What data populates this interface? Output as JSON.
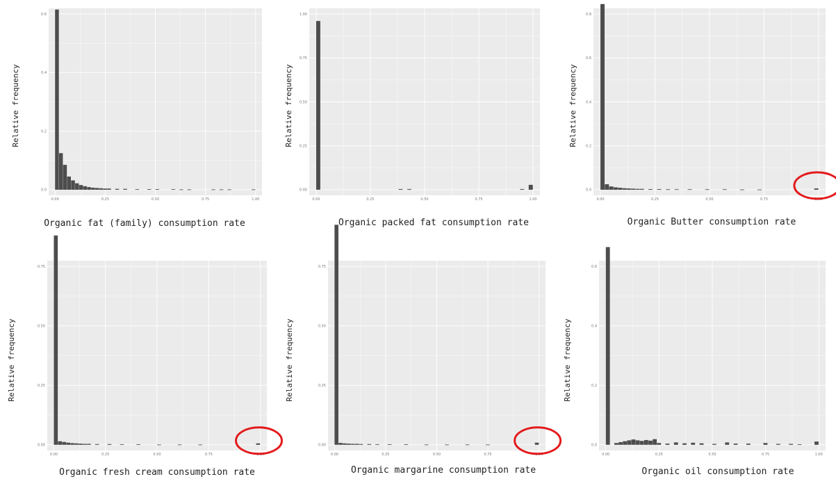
{
  "figure": {
    "description_free": true,
    "colors": {
      "panel_bg": "#ebebeb",
      "grid": "#ffffff",
      "bar": "#4d4d4d",
      "highlight_circle": "#e31a1c"
    }
  },
  "chart_data": [
    {
      "type": "bar",
      "xlabel": "Organic fat (family) consumption rate",
      "ylabel": "Relative frequency",
      "xlim": [
        0,
        1
      ],
      "ylim": [
        0,
        0.6
      ],
      "xticks": [
        "0.00",
        "0.25",
        "0.50",
        "0.75",
        "1.00"
      ],
      "xtick_values": [
        0,
        0.25,
        0.5,
        0.75,
        1
      ],
      "yticks": [
        "0.0",
        "0.2",
        "0.4",
        "0.6"
      ],
      "ytick_values": [
        0,
        0.2,
        0.4,
        0.6
      ],
      "bin_width": 0.02,
      "x": [
        0.0,
        0.02,
        0.04,
        0.06,
        0.08,
        0.1,
        0.12,
        0.14,
        0.16,
        0.18,
        0.2,
        0.22,
        0.24,
        0.26,
        0.3,
        0.34,
        0.4,
        0.46,
        0.5,
        0.58,
        0.62,
        0.66,
        0.78,
        0.82,
        0.86,
        0.98
      ],
      "values": [
        0.615,
        0.125,
        0.085,
        0.045,
        0.032,
        0.022,
        0.016,
        0.012,
        0.009,
        0.007,
        0.006,
        0.005,
        0.004,
        0.004,
        0.003,
        0.003,
        0.002,
        0.002,
        0.002,
        0.002,
        0.001,
        0.001,
        0.001,
        0.001,
        0.001,
        0.001
      ],
      "highlight": false,
      "grid": true
    },
    {
      "type": "bar",
      "xlabel": "Organic packed fat consumption rate",
      "ylabel": "Relative frequency",
      "xlim": [
        0,
        1
      ],
      "ylim": [
        0,
        1
      ],
      "xticks": [
        "0.00",
        "0.25",
        "0.50",
        "0.75",
        "1.00"
      ],
      "xtick_values": [
        0,
        0.25,
        0.5,
        0.75,
        1
      ],
      "yticks": [
        "0.00",
        "0.25",
        "0.50",
        "0.75",
        "1.00"
      ],
      "ytick_values": [
        0,
        0.25,
        0.5,
        0.75,
        1
      ],
      "bin_width": 0.02,
      "x": [
        0.0,
        0.38,
        0.42,
        0.94,
        0.98
      ],
      "values": [
        0.96,
        0.004,
        0.004,
        0.004,
        0.028
      ],
      "highlight": false,
      "grid": true
    },
    {
      "type": "bar",
      "xlabel": "Organic Butter consumption rate",
      "ylabel": "Relative frequency",
      "xlim": [
        0,
        1
      ],
      "ylim": [
        0,
        0.8
      ],
      "xticks": [
        "0.00",
        "0.25",
        "0.50",
        "0.75",
        "1.00"
      ],
      "xtick_values": [
        0,
        0.25,
        0.5,
        0.75,
        1
      ],
      "yticks": [
        "0.0",
        "0.2",
        "0.4",
        "0.6",
        "0.8"
      ],
      "ytick_values": [
        0,
        0.2,
        0.4,
        0.6,
        0.8
      ],
      "bin_width": 0.02,
      "x": [
        0.0,
        0.02,
        0.04,
        0.06,
        0.08,
        0.1,
        0.12,
        0.14,
        0.16,
        0.18,
        0.22,
        0.26,
        0.3,
        0.34,
        0.4,
        0.48,
        0.56,
        0.64,
        0.72,
        0.98
      ],
      "values": [
        0.845,
        0.025,
        0.015,
        0.011,
        0.009,
        0.007,
        0.006,
        0.005,
        0.004,
        0.004,
        0.003,
        0.003,
        0.002,
        0.002,
        0.002,
        0.002,
        0.002,
        0.001,
        0.001,
        0.006
      ],
      "highlight": true,
      "grid": true
    },
    {
      "type": "bar",
      "xlabel": "Organic fresh cream consumption rate",
      "ylabel": "Relative frequency",
      "xlim": [
        0,
        1
      ],
      "ylim": [
        0,
        0.75
      ],
      "xticks": [
        "0.00",
        "0.25",
        "0.50",
        "0.75",
        "1.00"
      ],
      "xtick_values": [
        0,
        0.25,
        0.5,
        0.75,
        1
      ],
      "yticks": [
        "0.00",
        "0.25",
        "0.50",
        "0.75"
      ],
      "ytick_values": [
        0,
        0.25,
        0.5,
        0.75
      ],
      "bin_width": 0.02,
      "x": [
        0.0,
        0.02,
        0.04,
        0.06,
        0.08,
        0.1,
        0.12,
        0.14,
        0.16,
        0.2,
        0.26,
        0.32,
        0.4,
        0.5,
        0.6,
        0.7,
        0.98
      ],
      "values": [
        0.88,
        0.015,
        0.012,
        0.009,
        0.007,
        0.006,
        0.005,
        0.004,
        0.004,
        0.003,
        0.003,
        0.002,
        0.002,
        0.001,
        0.001,
        0.001,
        0.006
      ],
      "highlight": true,
      "grid": true
    },
    {
      "type": "bar",
      "xlabel": "Organic margarine consumption rate",
      "ylabel": "Relative frequency",
      "xlim": [
        0,
        1
      ],
      "ylim": [
        0,
        0.75
      ],
      "xticks": [
        "0.00",
        "0.25",
        "0.50",
        "0.75",
        "1.00"
      ],
      "xtick_values": [
        0,
        0.25,
        0.5,
        0.75,
        1
      ],
      "yticks": [
        "0.00",
        "0.25",
        "0.50",
        "0.75"
      ],
      "ytick_values": [
        0,
        0.25,
        0.5,
        0.75
      ],
      "bin_width": 0.02,
      "x": [
        0.0,
        0.02,
        0.04,
        0.06,
        0.08,
        0.1,
        0.12,
        0.16,
        0.2,
        0.26,
        0.34,
        0.44,
        0.54,
        0.64,
        0.74,
        0.98
      ],
      "values": [
        0.925,
        0.008,
        0.006,
        0.005,
        0.004,
        0.004,
        0.003,
        0.003,
        0.002,
        0.002,
        0.002,
        0.001,
        0.001,
        0.001,
        0.001,
        0.009
      ],
      "highlight": true,
      "grid": true
    },
    {
      "type": "bar",
      "xlabel": "Organic oil consumption rate",
      "ylabel": "Relative frequency",
      "xlim": [
        0,
        1
      ],
      "ylim": [
        0,
        0.6
      ],
      "xticks": [
        "0.00",
        "0.25",
        "0.50",
        "0.75",
        "1.00"
      ],
      "xtick_values": [
        0,
        0.25,
        0.5,
        0.75,
        1
      ],
      "yticks": [
        "0.0",
        "0.2",
        "0.4",
        "0.6"
      ],
      "ytick_values": [
        0,
        0.2,
        0.4,
        0.6
      ],
      "bin_width": 0.02,
      "x": [
        0.0,
        0.04,
        0.06,
        0.08,
        0.1,
        0.12,
        0.14,
        0.16,
        0.18,
        0.2,
        0.22,
        0.24,
        0.28,
        0.32,
        0.36,
        0.4,
        0.44,
        0.5,
        0.56,
        0.6,
        0.66,
        0.74,
        0.8,
        0.86,
        0.9,
        0.98
      ],
      "values": [
        0.665,
        0.006,
        0.009,
        0.012,
        0.015,
        0.018,
        0.015,
        0.013,
        0.016,
        0.014,
        0.019,
        0.006,
        0.004,
        0.008,
        0.005,
        0.007,
        0.005,
        0.003,
        0.008,
        0.004,
        0.004,
        0.006,
        0.003,
        0.003,
        0.002,
        0.011
      ],
      "highlight": false,
      "grid": true
    }
  ]
}
